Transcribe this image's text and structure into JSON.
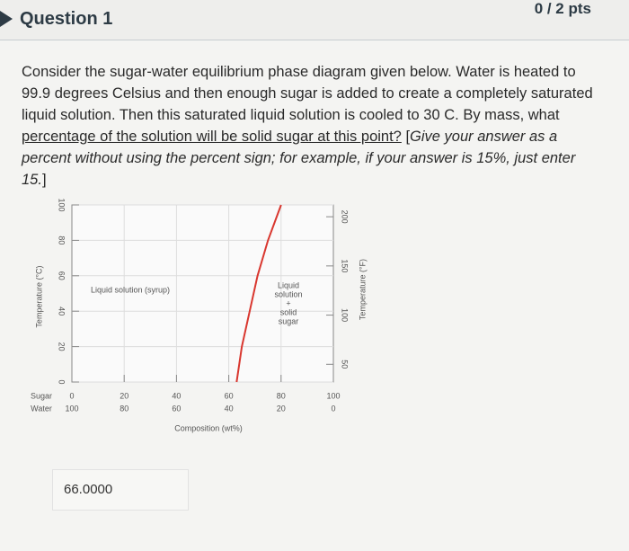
{
  "header": {
    "title": "Question 1",
    "points": "0 / 2 pts"
  },
  "question": {
    "intro": "Consider the sugar-water equilibrium phase diagram given below. Water is heated to 99.9 degrees Celsius and then enough sugar is added to create a completely saturated liquid solution. Then this saturated liquid solution is cooled to 30 C. By mass, what ",
    "underlined": "percentage of the solution will be solid sugar at this point?",
    "open": " [",
    "instruction": "Give your answer as a percent without using the percent sign; for example, if your answer is 15%, just enter 15.",
    "close": "]"
  },
  "figure": {
    "y_label": "Temperature (°C)",
    "y2_label": "Temperature (°F)",
    "x_label": "Composition (wt%)",
    "sugar_label": "Sugar",
    "water_label": "Water",
    "region_left": "Liquid solution (syrup)",
    "region_right": [
      "Liquid",
      "solution",
      "+",
      "solid",
      "sugar"
    ],
    "ylim": [
      0,
      100
    ],
    "yticks": [
      0,
      20,
      40,
      60,
      80,
      100
    ],
    "y2lim": [
      32,
      212
    ],
    "y2ticks": [
      50,
      100,
      150,
      200
    ],
    "xlim": [
      0,
      100
    ],
    "sugar_ticks": [
      0,
      20,
      40,
      60,
      80,
      100
    ],
    "water_lim": [
      100,
      0
    ],
    "water_ticks": [
      100,
      80,
      60,
      40,
      20,
      0
    ],
    "grid": true,
    "curve": {
      "color": "#d9372f",
      "x": [
        63,
        65,
        68,
        71,
        75,
        80
      ],
      "y": [
        0,
        20,
        40,
        60,
        80,
        100
      ]
    }
  },
  "answer": "66.0000"
}
